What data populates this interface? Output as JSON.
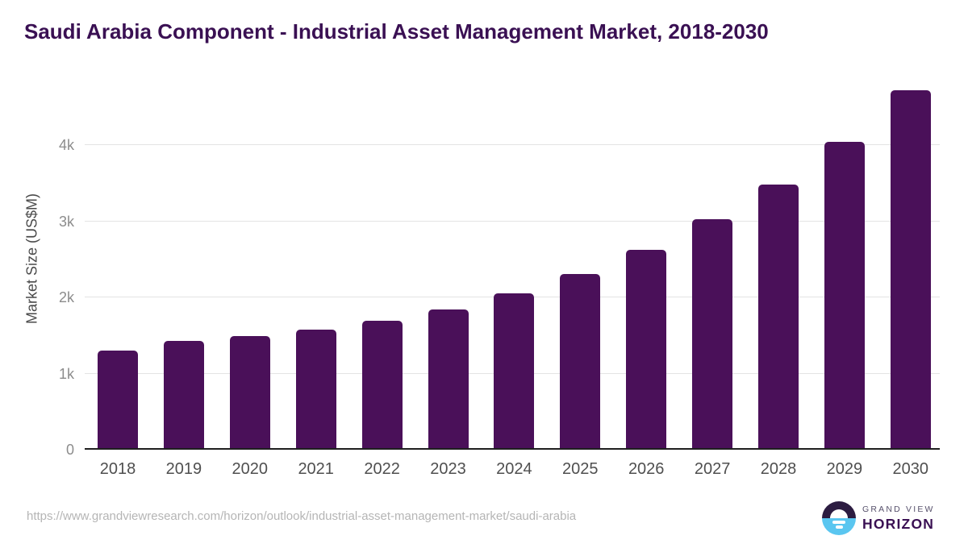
{
  "title": "Saudi Arabia Component - Industrial Asset Management Market, 2018-2030",
  "chart_data": {
    "type": "bar",
    "title": "Saudi Arabia Component - Industrial Asset Management Market, 2018-2030",
    "categories": [
      "2018",
      "2019",
      "2020",
      "2021",
      "2022",
      "2023",
      "2024",
      "2025",
      "2026",
      "2027",
      "2028",
      "2029",
      "2030"
    ],
    "values": [
      1300,
      1430,
      1490,
      1575,
      1690,
      1840,
      2060,
      2310,
      2630,
      3030,
      3490,
      4050,
      4730
    ],
    "series_name": "Market Size",
    "xlabel": "",
    "ylabel": "Market Size (US$M)",
    "ylim": [
      0,
      5000
    ],
    "yticks": [
      {
        "value": 0,
        "label": "0"
      },
      {
        "value": 1000,
        "label": "1k"
      },
      {
        "value": 2000,
        "label": "2k"
      },
      {
        "value": 3000,
        "label": "3k"
      },
      {
        "value": 4000,
        "label": "4k"
      }
    ],
    "grid": "horizontal",
    "legend": "none",
    "bar_color": "#4a1059"
  },
  "footer": {
    "source_url": "https://www.grandviewresearch.com/horizon/outlook/industrial-asset-management-market/saudi-arabia",
    "logo": {
      "line1": "GRAND VIEW",
      "line2": "HORIZON"
    }
  },
  "colors": {
    "bar": "#4a1059",
    "title": "#3a1053",
    "axis": "#1f1f1f",
    "grid": "#e4e4e4",
    "ytick": "#8c8c8c",
    "xlabel": "#4f4f4f",
    "url": "#b5b5b5",
    "logo_dark": "#2c1c41",
    "logo_blue": "#5ac6f0"
  }
}
